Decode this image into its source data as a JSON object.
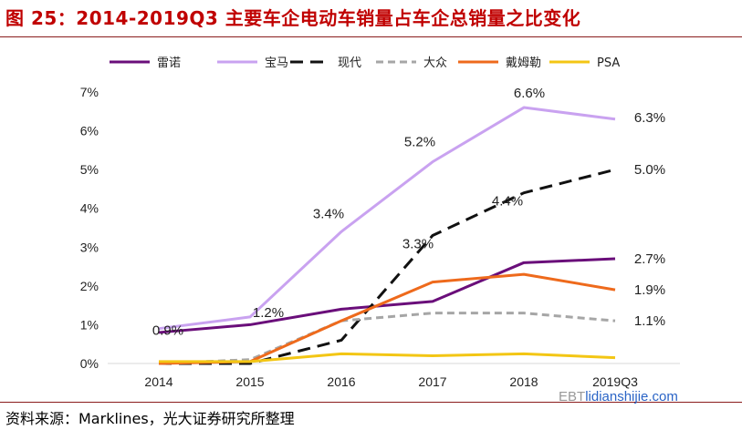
{
  "header": {
    "title": "图 25：2014-2019Q3 主要车企电动车销量占车企总销量之比变化"
  },
  "footer": {
    "source": "资料来源：Marklines，光大证券研究所整理",
    "watermark_prefix": "EBT",
    "watermark_site": "lidianshijie.com"
  },
  "chart_data": {
    "type": "line",
    "categories": [
      "2014",
      "2015",
      "2016",
      "2017",
      "2018",
      "2019Q3"
    ],
    "y_ticks": [
      "0%",
      "1%",
      "2%",
      "3%",
      "4%",
      "5%",
      "6%",
      "7%"
    ],
    "ylim": [
      0,
      7
    ],
    "y_unit": "%",
    "legend_position": "top",
    "grid": false,
    "series": [
      {
        "name": "雷诺",
        "color": "#6a0e7a",
        "dash": "solid",
        "values": [
          0.8,
          1.0,
          1.4,
          1.6,
          2.6,
          2.7
        ]
      },
      {
        "name": "宝马",
        "color": "#c9a2f0",
        "dash": "solid",
        "values": [
          0.9,
          1.2,
          3.4,
          5.2,
          6.6,
          6.3
        ]
      },
      {
        "name": "现代",
        "color": "#111111",
        "dash": "long",
        "values": [
          0.0,
          0.0,
          0.6,
          3.3,
          4.4,
          5.0
        ]
      },
      {
        "name": "大众",
        "color": "#a6a6a6",
        "dash": "short",
        "values": [
          0.0,
          0.1,
          1.1,
          1.3,
          1.3,
          1.1
        ]
      },
      {
        "name": "戴姆勒",
        "color": "#ee6a1c",
        "dash": "solid",
        "values": [
          0.0,
          0.05,
          1.1,
          2.1,
          2.3,
          1.9
        ]
      },
      {
        "name": "PSA",
        "color": "#f3c614",
        "dash": "solid",
        "values": [
          0.05,
          0.05,
          0.25,
          0.2,
          0.25,
          0.15
        ]
      }
    ],
    "annotations": [
      {
        "text": "0.9%",
        "series": 1,
        "index": 0
      },
      {
        "text": "1.2%",
        "series": 1,
        "index": 1
      },
      {
        "text": "3.4%",
        "series": 1,
        "index": 2
      },
      {
        "text": "5.2%",
        "series": 1,
        "index": 3
      },
      {
        "text": "6.6%",
        "series": 1,
        "index": 4
      },
      {
        "text": "6.3%",
        "series": 1,
        "index": 5
      },
      {
        "text": "3.3%",
        "series": 2,
        "index": 3
      },
      {
        "text": "4.4%",
        "series": 2,
        "index": 4
      },
      {
        "text": "5.0%",
        "series": 2,
        "index": 5
      },
      {
        "text": "2.7%",
        "series": 0,
        "index": 5
      },
      {
        "text": "1.9%",
        "series": 4,
        "index": 5
      },
      {
        "text": "1.1%",
        "series": 3,
        "index": 5
      }
    ]
  }
}
